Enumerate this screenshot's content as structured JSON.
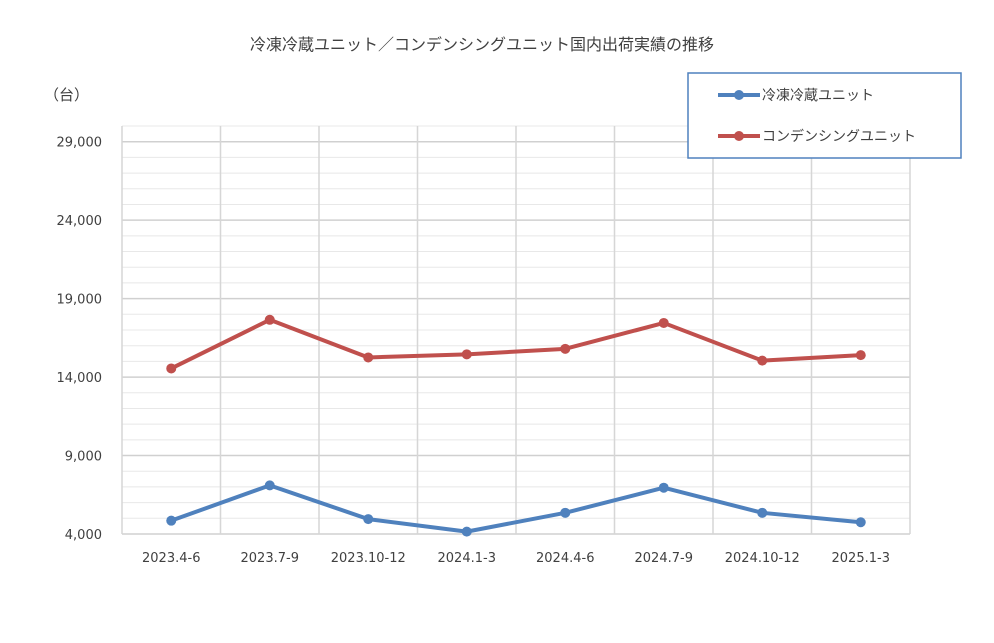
{
  "chart_data": {
    "type": "line",
    "title": "冷凍冷蔵ユニット／コンデンシングユニット国内出荷実績の推移",
    "unit_label": "（台）",
    "categories": [
      "2023.4-6",
      "2023.7-9",
      "2023.10-12",
      "2024.1-3",
      "2024.4-6",
      "2024.7-9",
      "2024.10-12",
      "2025.1-3"
    ],
    "y_ticks": [
      4000,
      9000,
      14000,
      19000,
      24000,
      29000
    ],
    "y_tick_labels": [
      "4,000",
      "9,000",
      "14,000",
      "19,000",
      "24,000",
      "29,000"
    ],
    "ylim": [
      4000,
      30000
    ],
    "grid": true,
    "legend_position": "top-right",
    "series": [
      {
        "name": "冷凍冷蔵ユニット",
        "color": "#4f81bd",
        "values": [
          4850,
          7100,
          4950,
          4150,
          5350,
          6950,
          5350,
          4750
        ]
      },
      {
        "name": "コンデンシングユニット",
        "color": "#c0504d",
        "values": [
          14550,
          17650,
          15250,
          15450,
          15800,
          17450,
          15050,
          15400
        ]
      }
    ]
  }
}
